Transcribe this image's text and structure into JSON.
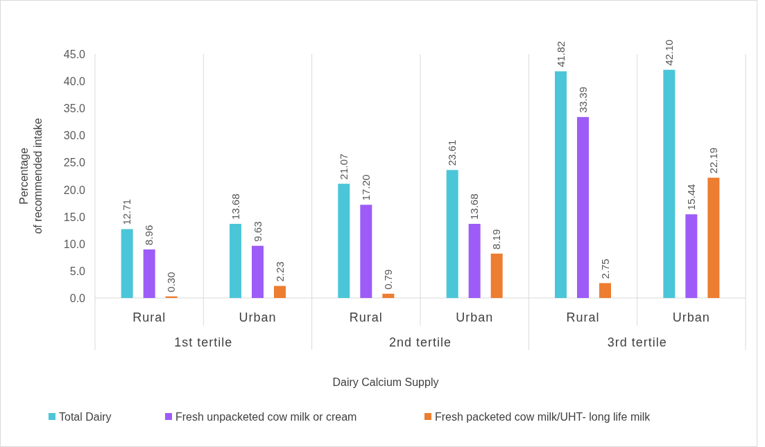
{
  "chart_data": {
    "type": "bar",
    "xlabel": "Dairy Calcium Supply",
    "ylabel": "Percentage of recommended intake",
    "categories": [
      "Rural",
      "Urban",
      "Rural",
      "Urban",
      "Rural",
      "Urban"
    ],
    "annotations": [
      "1st tertile",
      "2nd tertile",
      "3rd tertile"
    ],
    "series": [
      {
        "name": "Total Dairy",
        "color": "#4bc6d8",
        "values": [
          12.71,
          13.68,
          21.07,
          23.61,
          41.82,
          42.1
        ],
        "value_labels": [
          "12.71",
          "13.68",
          "21.07",
          "23.61",
          "41.82",
          "42.10"
        ]
      },
      {
        "name": "Fresh unpacketed cow milk or cream",
        "color": "#9d5cf7",
        "values": [
          8.96,
          9.63,
          17.2,
          13.68,
          33.39,
          15.44
        ],
        "value_labels": [
          "8.96",
          "9.63",
          "17.20",
          "13.68",
          "33.39",
          "15.44"
        ]
      },
      {
        "name": "Fresh packeted cow milk/UHT- long life milk",
        "color": "#ed7d31",
        "values": [
          0.3,
          2.23,
          0.79,
          8.19,
          2.75,
          22.19
        ],
        "value_labels": [
          "0.30",
          "2.23",
          "0.79",
          "8.19",
          "2.75",
          "22.19"
        ]
      }
    ],
    "ylim": [
      0,
      45
    ],
    "yticks": [
      {
        "value": 0,
        "label": "0.0"
      },
      {
        "value": 5,
        "label": "5.0"
      },
      {
        "value": 10,
        "label": "10.0"
      },
      {
        "value": 15,
        "label": "15.0"
      },
      {
        "value": 20,
        "label": "20.0"
      },
      {
        "value": 25,
        "label": "25.0"
      },
      {
        "value": 30,
        "label": "30.0"
      },
      {
        "value": 35,
        "label": "35.0"
      },
      {
        "value": 40,
        "label": "40.0"
      },
      {
        "value": 45,
        "label": "45.0"
      }
    ],
    "grid": false,
    "legend": "bottom"
  }
}
